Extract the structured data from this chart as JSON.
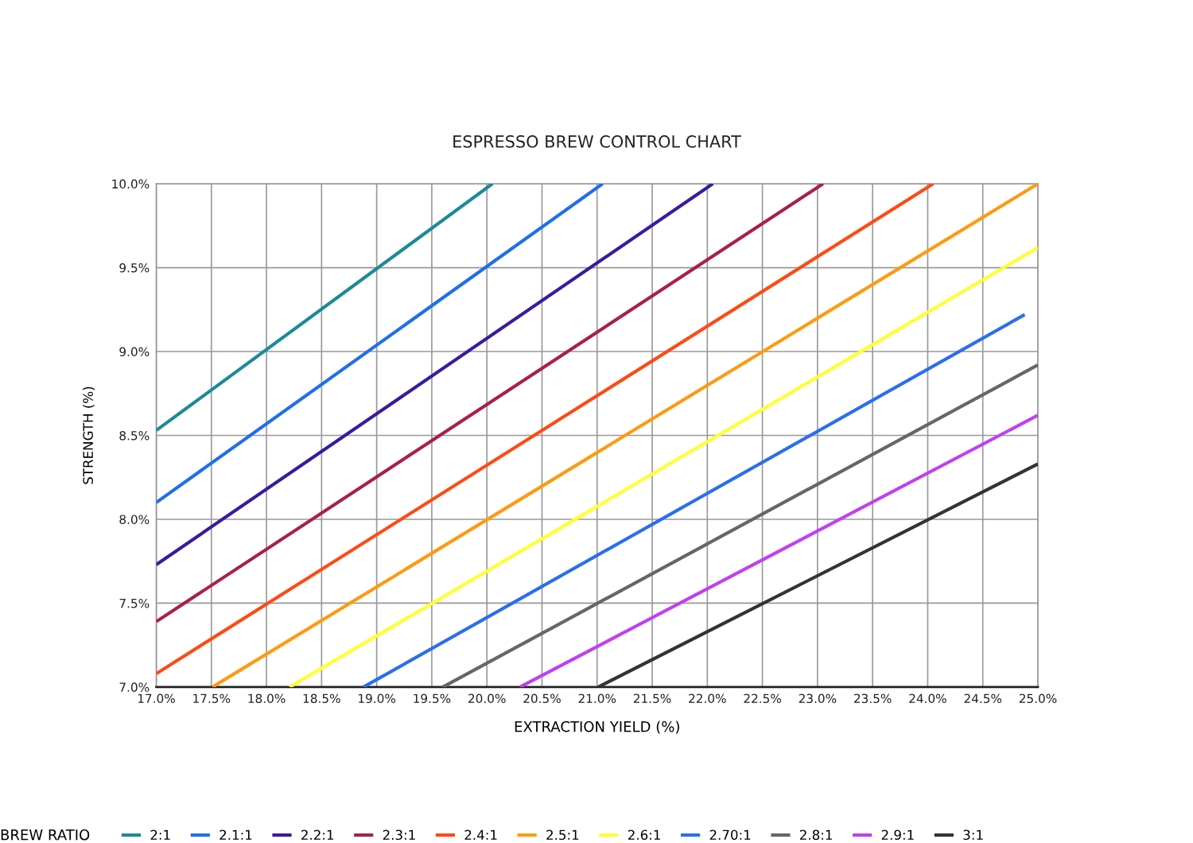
{
  "chart_data": {
    "type": "line",
    "title": "ESPRESSO BREW CONTROL CHART",
    "xlabel": "EXTRACTION YIELD (%)",
    "ylabel": "STRENGTH (%)",
    "legend_title": "BREW RATIO",
    "legend": "bottom",
    "grid": true,
    "marker": "none",
    "line_style": "solid",
    "xlim": [
      17.0,
      25.0
    ],
    "ylim": [
      7.0,
      10.0
    ],
    "xticks": [
      {
        "value": 17.0,
        "label": "17.0%"
      },
      {
        "value": 17.5,
        "label": "17.5%"
      },
      {
        "value": 18.0,
        "label": "18.0%"
      },
      {
        "value": 18.5,
        "label": "18.5%"
      },
      {
        "value": 19.0,
        "label": "19.0%"
      },
      {
        "value": 19.5,
        "label": "19.5%"
      },
      {
        "value": 20.0,
        "label": "20.0%"
      },
      {
        "value": 20.5,
        "label": "20.5%"
      },
      {
        "value": 21.0,
        "label": "21.0%"
      },
      {
        "value": 21.5,
        "label": "21.5%"
      },
      {
        "value": 22.0,
        "label": "22.0%"
      },
      {
        "value": 22.5,
        "label": "22.5%"
      },
      {
        "value": 23.0,
        "label": "23.0%"
      },
      {
        "value": 23.5,
        "label": "23.5%"
      },
      {
        "value": 24.0,
        "label": "24.0%"
      },
      {
        "value": 24.5,
        "label": "24.5%"
      },
      {
        "value": 25.0,
        "label": "25.0%"
      }
    ],
    "yticks": [
      {
        "value": 7.0,
        "label": "7.0%"
      },
      {
        "value": 7.5,
        "label": "7.5%"
      },
      {
        "value": 8.0,
        "label": "8.0%"
      },
      {
        "value": 8.5,
        "label": "8.5%"
      },
      {
        "value": 9.0,
        "label": "9.0%"
      },
      {
        "value": 9.5,
        "label": "9.5%"
      },
      {
        "value": 10.0,
        "label": "10.0%"
      }
    ],
    "series": [
      {
        "name": "2:1",
        "color": "#1a8a9a",
        "x": [
          17.0,
          20.05
        ],
        "values": [
          8.53,
          10.0
        ]
      },
      {
        "name": "2.1:1",
        "color": "#1f6fe8",
        "x": [
          17.0,
          21.05
        ],
        "values": [
          8.1,
          10.0
        ]
      },
      {
        "name": "2.2:1",
        "color": "#3a1aa0",
        "x": [
          17.0,
          22.05
        ],
        "values": [
          7.73,
          10.0
        ]
      },
      {
        "name": "2.3:1",
        "color": "#a8204a",
        "x": [
          17.0,
          23.05
        ],
        "values": [
          7.39,
          10.0
        ]
      },
      {
        "name": "2.4:1",
        "color": "#ff4a14",
        "x": [
          17.0,
          24.05
        ],
        "values": [
          7.08,
          10.0
        ]
      },
      {
        "name": "2.5:1",
        "color": "#ff9a10",
        "x": [
          17.51,
          25.0
        ],
        "values": [
          7.0,
          10.0
        ]
      },
      {
        "name": "2.6:1",
        "color": "#ffff33",
        "x": [
          18.21,
          25.0
        ],
        "values": [
          7.0,
          9.62
        ]
      },
      {
        "name": "2.70:1",
        "color": "#2a6ef0",
        "x": [
          18.88,
          24.88
        ],
        "values": [
          7.0,
          9.22
        ]
      },
      {
        "name": "2.8:1",
        "color": "#666666",
        "x": [
          19.6,
          25.0
        ],
        "values": [
          7.0,
          8.92
        ]
      },
      {
        "name": "2.9:1",
        "color": "#c040f0",
        "x": [
          20.3,
          25.0
        ],
        "values": [
          7.0,
          8.62
        ]
      },
      {
        "name": "3:1",
        "color": "#333333",
        "x": [
          21.01,
          25.0
        ],
        "values": [
          7.0,
          8.33
        ]
      }
    ]
  }
}
